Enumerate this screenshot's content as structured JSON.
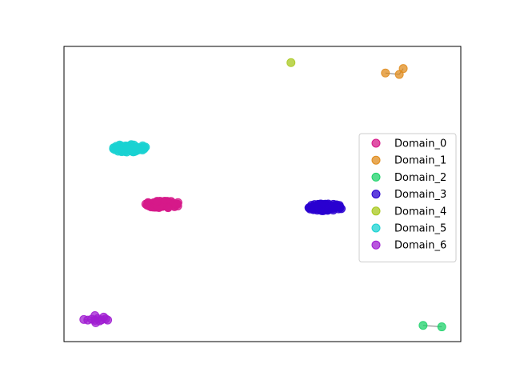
{
  "chart_data": {
    "type": "scatter",
    "title": "",
    "xlabel": "",
    "ylabel": "",
    "xlim": [
      0,
      1
    ],
    "ylim": [
      0,
      1
    ],
    "grid": false,
    "axis_ticks_visible": false,
    "legend": {
      "placement": "center-right"
    },
    "series": [
      {
        "name": "Domain_0",
        "color": "#d6198a",
        "spread": [
          0.045,
          0.012
        ],
        "count": 70,
        "x": [
          0.25
        ],
        "y": [
          0.465
        ],
        "edges": []
      },
      {
        "name": "Domain_1",
        "color": "#e08c1e",
        "spread": [
          0,
          0
        ],
        "count": 0,
        "x": [
          0.81,
          0.845,
          0.855
        ],
        "y": [
          0.91,
          0.905,
          0.925
        ],
        "edges": [
          [
            0,
            1
          ],
          [
            1,
            2
          ]
        ]
      },
      {
        "name": "Domain_2",
        "color": "#1ed26a",
        "spread": [
          0,
          0
        ],
        "count": 0,
        "x": [
          0.905,
          0.952
        ],
        "y": [
          0.055,
          0.05
        ],
        "edges": [
          [
            0,
            1
          ]
        ]
      },
      {
        "name": "Domain_3",
        "color": "#2a00d0",
        "spread": [
          0.045,
          0.012
        ],
        "count": 70,
        "x": [
          0.659
        ],
        "y": [
          0.455
        ],
        "edges": []
      },
      {
        "name": "Domain_4",
        "color": "#a8c81e",
        "spread": [
          0,
          0
        ],
        "count": 0,
        "x": [
          0.572
        ],
        "y": [
          0.945
        ],
        "edges": []
      },
      {
        "name": "Domain_5",
        "color": "#19d2d2",
        "spread": [
          0.042,
          0.014
        ],
        "count": 70,
        "x": [
          0.165
        ],
        "y": [
          0.655
        ],
        "edges": []
      },
      {
        "name": "Domain_6",
        "color": "#a01ed2",
        "spread": [
          0,
          0
        ],
        "count": 0,
        "x": [
          0.05,
          0.06,
          0.07,
          0.078,
          0.085,
          0.09,
          0.095,
          0.1,
          0.105,
          0.11,
          0.08,
          0.078
        ],
        "y": [
          0.075,
          0.073,
          0.076,
          0.072,
          0.078,
          0.07,
          0.074,
          0.083,
          0.077,
          0.073,
          0.064,
          0.088
        ],
        "edges": [
          [
            0,
            1
          ],
          [
            1,
            2
          ],
          [
            2,
            3
          ],
          [
            3,
            4
          ],
          [
            4,
            5
          ],
          [
            5,
            6
          ],
          [
            6,
            7
          ],
          [
            7,
            8
          ],
          [
            8,
            9
          ],
          [
            3,
            10
          ],
          [
            4,
            11
          ]
        ]
      }
    ]
  }
}
